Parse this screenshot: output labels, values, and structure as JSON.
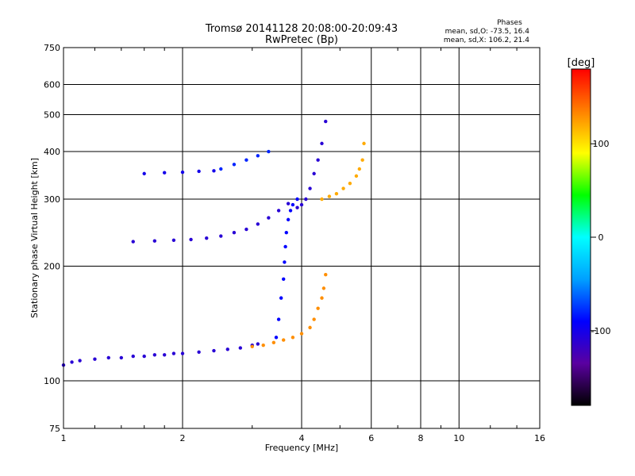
{
  "chart_data": {
    "type": "scatter",
    "title": "Tromsø 20141128 20:08:00-20:09:43",
    "subtitle": "RwPretec (Bp)",
    "xlabel": "Frequency [MHz]",
    "ylabel": "Stationary phase Virtual Height [km]",
    "x_scale": "log",
    "y_scale": "log",
    "xlim": [
      1,
      16
    ],
    "ylim": [
      75,
      750
    ],
    "x_ticks": [
      1,
      2,
      4,
      6,
      8,
      10,
      16
    ],
    "y_ticks": [
      75,
      100,
      200,
      300,
      400,
      500,
      600,
      750
    ],
    "grid": true,
    "stats": {
      "heading": "Phases",
      "line_o": "mean, sd,O: -73.5, 16.4",
      "line_x": "mean, sd,X: 106.2, 21.4"
    },
    "colorbar": {
      "label": "[deg]",
      "range": [
        -180,
        180
      ],
      "ticks": [
        100,
        0,
        -100
      ],
      "colors": [
        "#000000",
        "#5a00a0",
        "#0000ff",
        "#00a0ff",
        "#00ffff",
        "#00ff00",
        "#ffff00",
        "#ff8000",
        "#ff0000"
      ]
    },
    "series": [
      {
        "x": [
          1.0,
          1.05,
          1.1,
          1.2,
          1.3,
          1.4,
          1.5,
          1.6,
          1.7,
          1.8,
          1.9,
          2.0,
          2.2,
          2.4,
          2.6,
          2.8,
          3.0,
          3.1
        ],
        "y": [
          110,
          112,
          113,
          114,
          115,
          115,
          116,
          116,
          117,
          117,
          118,
          118,
          119,
          120,
          121,
          122,
          124,
          125
        ],
        "phase": -110
      },
      {
        "x": [
          3.0,
          3.2,
          3.4,
          3.6,
          3.8,
          4.0,
          4.2,
          4.3,
          4.4,
          4.5,
          4.55,
          4.6
        ],
        "y": [
          123,
          124,
          126,
          128,
          130,
          133,
          138,
          145,
          155,
          165,
          175,
          190
        ],
        "phase": 130
      },
      {
        "x": [
          3.45,
          3.5,
          3.55,
          3.6,
          3.62,
          3.64,
          3.66,
          3.7,
          3.75,
          3.8,
          3.9
        ],
        "y": [
          130,
          145,
          165,
          185,
          205,
          225,
          245,
          265,
          280,
          290,
          300
        ],
        "phase": -90
      },
      {
        "x": [
          1.5,
          1.7,
          1.9,
          2.1,
          2.3,
          2.5,
          2.7,
          2.9,
          3.1,
          3.3,
          3.5,
          3.7
        ],
        "y": [
          232,
          233,
          234,
          235,
          237,
          240,
          245,
          250,
          258,
          268,
          280,
          292
        ],
        "phase": -110
      },
      {
        "x": [
          3.9,
          4.0,
          4.1,
          4.2,
          4.3,
          4.4,
          4.5,
          4.6
        ],
        "y": [
          285,
          290,
          300,
          320,
          350,
          380,
          420,
          480
        ],
        "phase": -110
      },
      {
        "x": [
          4.5,
          4.7,
          4.9,
          5.1,
          5.3,
          5.5,
          5.6,
          5.7,
          5.75
        ],
        "y": [
          300,
          305,
          310,
          320,
          330,
          345,
          360,
          380,
          420
        ],
        "phase": 120
      },
      {
        "x": [
          1.6,
          1.8,
          2.0,
          2.2,
          2.4
        ],
        "y": [
          350,
          352,
          353,
          355,
          356
        ],
        "phase": -100
      },
      {
        "x": [
          2.5,
          2.7,
          2.9,
          3.1,
          3.3
        ],
        "y": [
          360,
          370,
          380,
          390,
          400
        ],
        "phase": -80
      }
    ]
  }
}
